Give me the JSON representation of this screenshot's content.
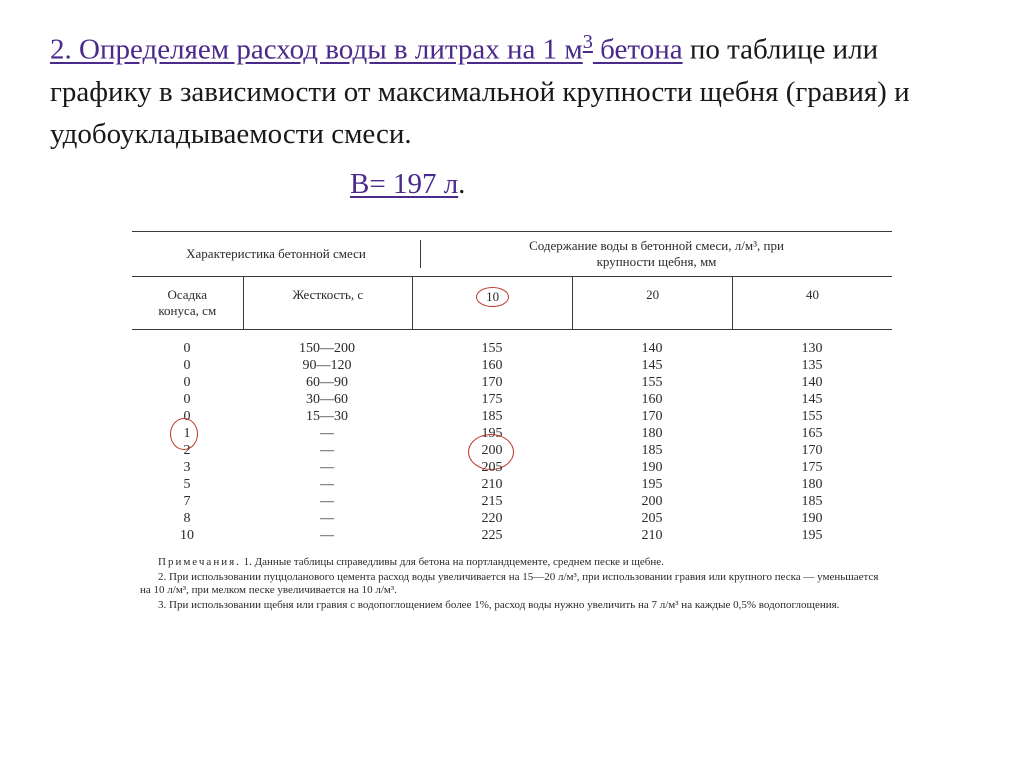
{
  "heading": {
    "part1": "2. Определяем  расход   воды   в литрах на 1 м",
    "cube_sup": "3",
    "part2": " бетона",
    "part3": " по таблице или графику в зависимости от максимальной крупности щебня (гравия) и удобоукладываемости смеси.",
    "result_prefix": "В= 197 л",
    "result_dot": "."
  },
  "table": {
    "header_left": "Характеристика бетонной смеси",
    "header_right_l1": "Содержание воды в бетонной смеси, л/м³, при",
    "header_right_l2": "крупности щебня, мм",
    "sub": {
      "osadka_l1": "Осадка",
      "osadka_l2": "конуса, см",
      "zhest": "Жесткость, с",
      "c10": "10",
      "c20": "20",
      "c40": "40"
    },
    "rows": [
      {
        "osadka": "0",
        "zhest": "150—200",
        "c10": "155",
        "c20": "140",
        "c40": "130"
      },
      {
        "osadka": "0",
        "zhest": "90—120",
        "c10": "160",
        "c20": "145",
        "c40": "135"
      },
      {
        "osadka": "0",
        "zhest": "60—90",
        "c10": "170",
        "c20": "155",
        "c40": "140"
      },
      {
        "osadka": "0",
        "zhest": "30—60",
        "c10": "175",
        "c20": "160",
        "c40": "145"
      },
      {
        "osadka": "0",
        "zhest": "15—30",
        "c10": "185",
        "c20": "170",
        "c40": "155"
      },
      {
        "osadka": "1",
        "zhest": "—",
        "c10": "195",
        "c20": "180",
        "c40": "165",
        "mark_osadka": true
      },
      {
        "osadka": "2",
        "zhest": "—",
        "c10": "200",
        "c20": "185",
        "c40": "170",
        "mark_values": true
      },
      {
        "osadka": "3",
        "zhest": "—",
        "c10": "205",
        "c20": "190",
        "c40": "175"
      },
      {
        "osadka": "5",
        "zhest": "—",
        "c10": "210",
        "c20": "195",
        "c40": "180"
      },
      {
        "osadka": "7",
        "zhest": "—",
        "c10": "215",
        "c20": "200",
        "c40": "185"
      },
      {
        "osadka": "8",
        "zhest": "—",
        "c10": "220",
        "c20": "205",
        "c40": "190"
      },
      {
        "osadka": "10",
        "zhest": "—",
        "c10": "225",
        "c20": "210",
        "c40": "195"
      }
    ]
  },
  "notes": {
    "label": "Примечания.",
    "n1": "1. Данные таблицы справедливы для бетона на портландцементе, среднем песке и щебне.",
    "n2": "2. При использовании пуццоланового цемента расход воды увеличивается на 15—20 л/м³, при использовании гравия или крупного песка — уменьшается на 10 л/м³, при мелком песке увеличивается на 10 л/м³.",
    "n3": "3. При использовании щебня или гравия с водопоглощением более 1%, расход воды нужно увеличить на 7 л/м³ на каждые 0,5% водопоглощения."
  },
  "colors": {
    "accent_red": "#c0392b",
    "heading_purple": "#4a2a8a",
    "text": "#191919"
  }
}
